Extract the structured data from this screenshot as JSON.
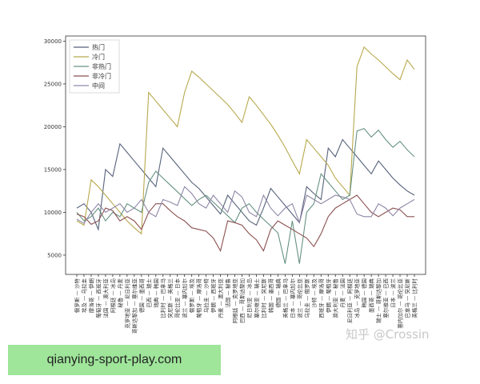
{
  "chart_data": {
    "type": "line",
    "categories": [
      "俄罗斯 — 沙特",
      "埃及 — 乌拉圭",
      "摩洛哥 — 伊朗",
      "葡萄牙 — 西班牙",
      "法国 — 澳大利亚",
      "阿根廷 — 冰岛",
      "秘鲁 — 丹麦",
      "克罗地亚 — 尼日利亚",
      "哥斯达黎加 — 塞尔维亚",
      "德国 — 墨西哥",
      "巴西 — 瑞士",
      "瑞典 — 韩国",
      "比利时 — 巴拿马",
      "突尼斯 — 英格兰",
      "哥伦比亚 — 日本",
      "波兰 — 塞内加尔",
      "俄罗斯 — 埃及",
      "葡萄牙 — 摩洛哥",
      "乌拉圭 — 沙特",
      "伊朗 — 西班牙",
      "丹麦 — 澳大利亚",
      "法国 — 秘鲁",
      "阿根廷 — 克罗地亚",
      "巴西 — 哥斯达黎加",
      "尼日利亚 — 冰岛",
      "塞尔维亚 — 瑞士",
      "比利时 — 突尼斯",
      "韩国 — 墨西哥",
      "德国 — 瑞典",
      "英格兰 — 巴拿马",
      "日本 — 塞内加尔",
      "波兰 — 哥伦比亚",
      "乌拉圭 — 俄罗斯",
      "沙特 — 埃及",
      "西班牙 — 摩洛哥",
      "伊朗 — 葡萄牙",
      "澳大利亚 — 秘鲁",
      "丹麦 — 法国",
      "尼日利亚 — 阿根廷",
      "冰岛 — 克罗地亚",
      "韩国 — 德国",
      "墨西哥 — 瑞典",
      "瑞士 — 哥斯达黎加",
      "塞尔维亚 — 巴西",
      "日本 — 波兰",
      "塞内加尔 — 哥伦比亚",
      "巴拿马 — 突尼斯",
      "英格兰 — 比利时"
    ],
    "series": [
      {
        "name": "热门",
        "color": "#56627a",
        "values": [
          10500,
          11000,
          10000,
          8000,
          15000,
          14200,
          18000,
          17000,
          16000,
          15000,
          14000,
          13000,
          17500,
          16500,
          15500,
          14500,
          13500,
          12800,
          11800,
          10800,
          9800,
          12000,
          11000,
          10000,
          9000,
          8500,
          10500,
          12800,
          11800,
          10800,
          9800,
          8800,
          13000,
          12200,
          11500,
          17500,
          16500,
          18500,
          17500,
          16500,
          15500,
          14500,
          16000,
          15000,
          14000,
          13200,
          12500,
          12000
        ]
      },
      {
        "name": "冷门",
        "color": "#b8a94e",
        "values": [
          9000,
          8500,
          13800,
          13000,
          12000,
          11000,
          10000,
          9000,
          8200,
          7500,
          24000,
          23000,
          22000,
          21000,
          20000,
          24000,
          26500,
          25800,
          25000,
          24200,
          23400,
          22600,
          21600,
          20500,
          23500,
          22500,
          21400,
          20300,
          19000,
          17600,
          16000,
          14500,
          18500,
          17500,
          16500,
          15500,
          14000,
          13000,
          12000,
          27000,
          29300,
          28500,
          27800,
          27000,
          26200,
          25500,
          27800,
          26700
        ]
      },
      {
        "name": "非热门",
        "color": "#679282",
        "values": [
          10000,
          9000,
          9500,
          10500,
          9000,
          10000,
          9500,
          11000,
          10500,
          10000,
          13500,
          14800,
          14000,
          13200,
          12400,
          11600,
          10800,
          11500,
          12000,
          11200,
          10400,
          9600,
          8800,
          10500,
          11000,
          10000,
          9200,
          8400,
          7600,
          4000,
          9000,
          4000,
          10000,
          11000,
          14500,
          13500,
          12500,
          11500,
          12000,
          19500,
          19800,
          18800,
          19600,
          18500,
          17600,
          18300,
          17300,
          16500
        ]
      },
      {
        "name": "非冷门",
        "color": "#8c5252",
        "values": [
          9800,
          9500,
          8600,
          9000,
          10500,
          10200,
          9000,
          9500,
          9000,
          8000,
          10000,
          11000,
          11000,
          10200,
          9500,
          9000,
          8200,
          8000,
          7800,
          7000,
          5500,
          9000,
          8800,
          8500,
          7500,
          6800,
          5500,
          8000,
          9000,
          8500,
          8000,
          7500,
          7000,
          6000,
          7500,
          9500,
          10500,
          11000,
          11500,
          12000,
          11000,
          10000,
          9500,
          10000,
          10500,
          10300,
          9500,
          9500
        ]
      },
      {
        "name": "中间",
        "color": "#8f86a6",
        "values": [
          9200,
          8700,
          10000,
          11000,
          10000,
          10500,
          11000,
          10000,
          10500,
          11500,
          10000,
          9500,
          11500,
          11200,
          10800,
          13000,
          12200,
          11000,
          10500,
          12000,
          11000,
          10000,
          12500,
          11800,
          10000,
          9500,
          12000,
          10500,
          9600,
          10500,
          11000,
          8800,
          12000,
          11500,
          11000,
          11500,
          12000,
          11800,
          11500,
          9800,
          9500,
          9500,
          11000,
          10500,
          9600,
          10500,
          11000,
          11500
        ]
      }
    ],
    "ylim": [
      2750,
      30600
    ],
    "yticks": [
      5000,
      10000,
      15000,
      20000,
      25000,
      30000
    ],
    "legend": "upper left"
  },
  "watermark": "知乎 @Crossin",
  "banner": "qianying-sport-play.com"
}
